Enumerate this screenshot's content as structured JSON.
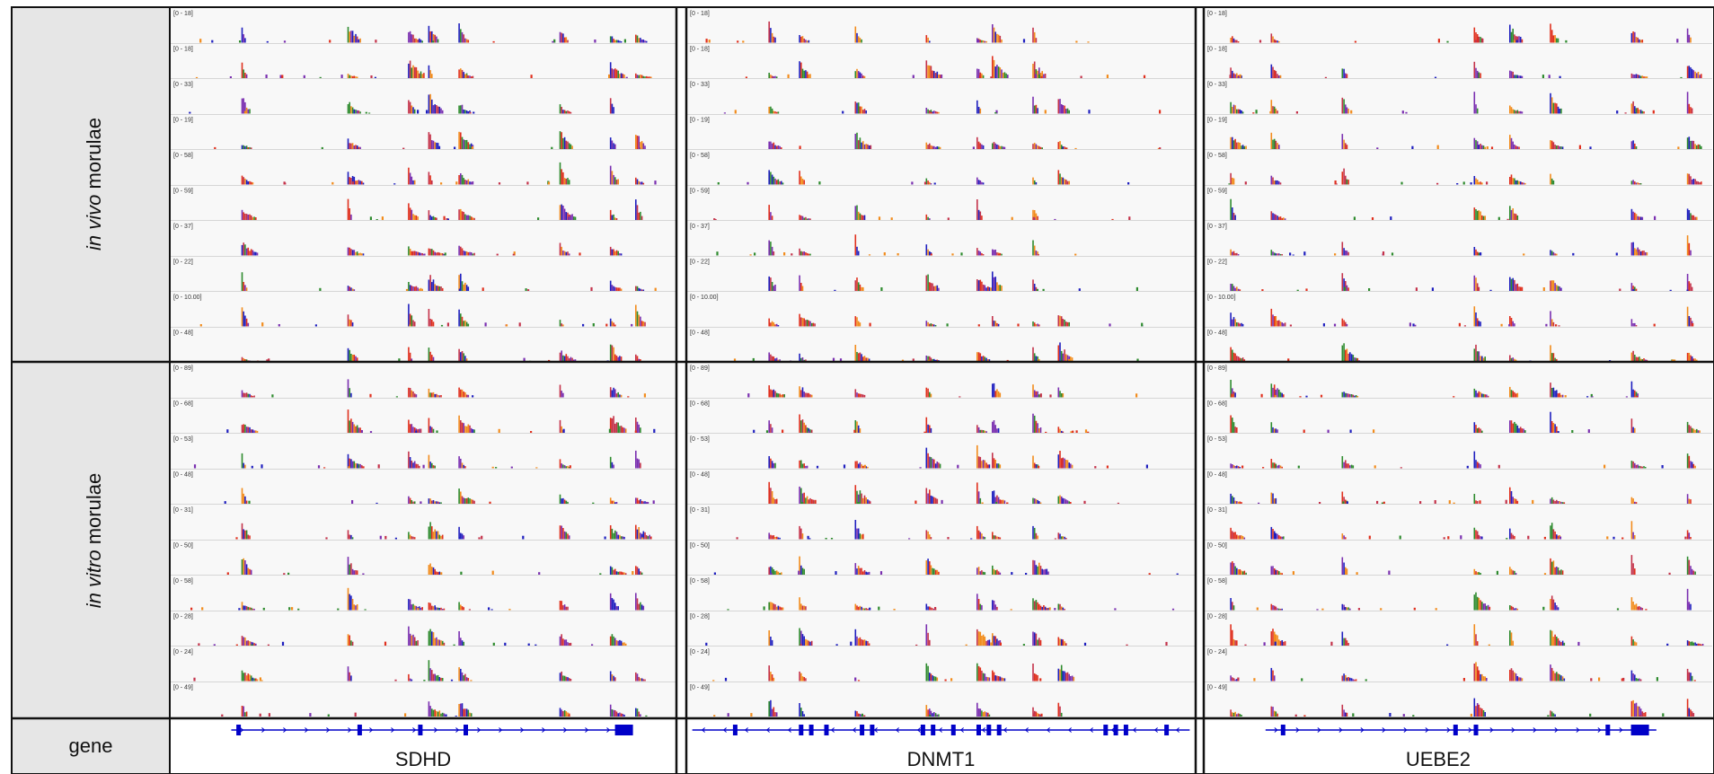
{
  "row_labels": {
    "in_vivo": {
      "italic": "in vivo",
      "plain": " morulae"
    },
    "in_vitro": {
      "italic": "in vitro",
      "plain": " morulae"
    },
    "gene": "gene"
  },
  "colors": {
    "track_bg": "#f8f8f8",
    "label_bg": "#e6e6e6",
    "gene_line": "#0000c8",
    "divider": "#b4b4b4",
    "bar_palette": [
      "#1f1fbf",
      "#2e8b2e",
      "#e0301e",
      "#f28c1c",
      "#7a2fb0",
      "#c4324a"
    ]
  },
  "chart_data": [
    {
      "type": "bar",
      "gene": "SDHD",
      "in_vivo_tracks": [
        "[0 - 18]",
        "[0 - 18]",
        "[0 - 33]",
        "[0 - 19]",
        "[0 - 58]",
        "[0 - 59]",
        "[0 - 37]",
        "[0 - 22]",
        "[0 - 10.00]",
        "[0 - 48]"
      ],
      "in_vitro_tracks": [
        "[0 - 89]",
        "[0 - 68]",
        "[0 - 53]",
        "[0 - 48]",
        "[0 - 31]",
        "[0 - 50]",
        "[0 - 58]",
        "[0 - 28]",
        "[0 - 24]",
        "[0 - 49]"
      ],
      "peak_positions": [
        0.14,
        0.35,
        0.47,
        0.51,
        0.57,
        0.77,
        0.87,
        0.92
      ],
      "exon_positions": [
        0.13,
        0.37,
        0.49,
        0.58,
        0.88
      ],
      "strand": "+"
    },
    {
      "type": "bar",
      "gene": "DNMT1",
      "in_vivo_tracks": [
        "[0 - 18]",
        "[0 - 18]",
        "[0 - 33]",
        "[0 - 19]",
        "[0 - 58]",
        "[0 - 59]",
        "[0 - 37]",
        "[0 - 22]",
        "[0 - 10.00]",
        "[0 - 48]"
      ],
      "in_vitro_tracks": [
        "[0 - 89]",
        "[0 - 68]",
        "[0 - 53]",
        "[0 - 48]",
        "[0 - 31]",
        "[0 - 50]",
        "[0 - 58]",
        "[0 - 28]",
        "[0 - 24]",
        "[0 - 49]"
      ],
      "peak_positions": [
        0.16,
        0.22,
        0.33,
        0.47,
        0.57,
        0.6,
        0.68,
        0.73
      ],
      "exon_positions": [
        0.09,
        0.22,
        0.24,
        0.27,
        0.34,
        0.36,
        0.46,
        0.48,
        0.52,
        0.57,
        0.59,
        0.61,
        0.82,
        0.84,
        0.86,
        0.94
      ],
      "strand": "-"
    },
    {
      "type": "bar",
      "gene": "UEBE2",
      "in_vivo_tracks": [
        "[0 - 18]",
        "[0 - 18]",
        "[0 - 33]",
        "[0 - 19]",
        "[0 - 58]",
        "[0 - 59]",
        "[0 - 37]",
        "[0 - 22]",
        "[0 - 10.00]",
        "[0 - 48]"
      ],
      "in_vitro_tracks": [
        "[0 - 89]",
        "[0 - 68]",
        "[0 - 53]",
        "[0 - 48]",
        "[0 - 31]",
        "[0 - 50]",
        "[0 - 58]",
        "[0 - 28]",
        "[0 - 24]",
        "[0 - 49]"
      ],
      "peak_positions": [
        0.05,
        0.13,
        0.27,
        0.53,
        0.6,
        0.68,
        0.84,
        0.95
      ],
      "exon_positions": [
        0.15,
        0.49,
        0.53,
        0.79,
        0.84
      ],
      "strand": "+"
    }
  ]
}
